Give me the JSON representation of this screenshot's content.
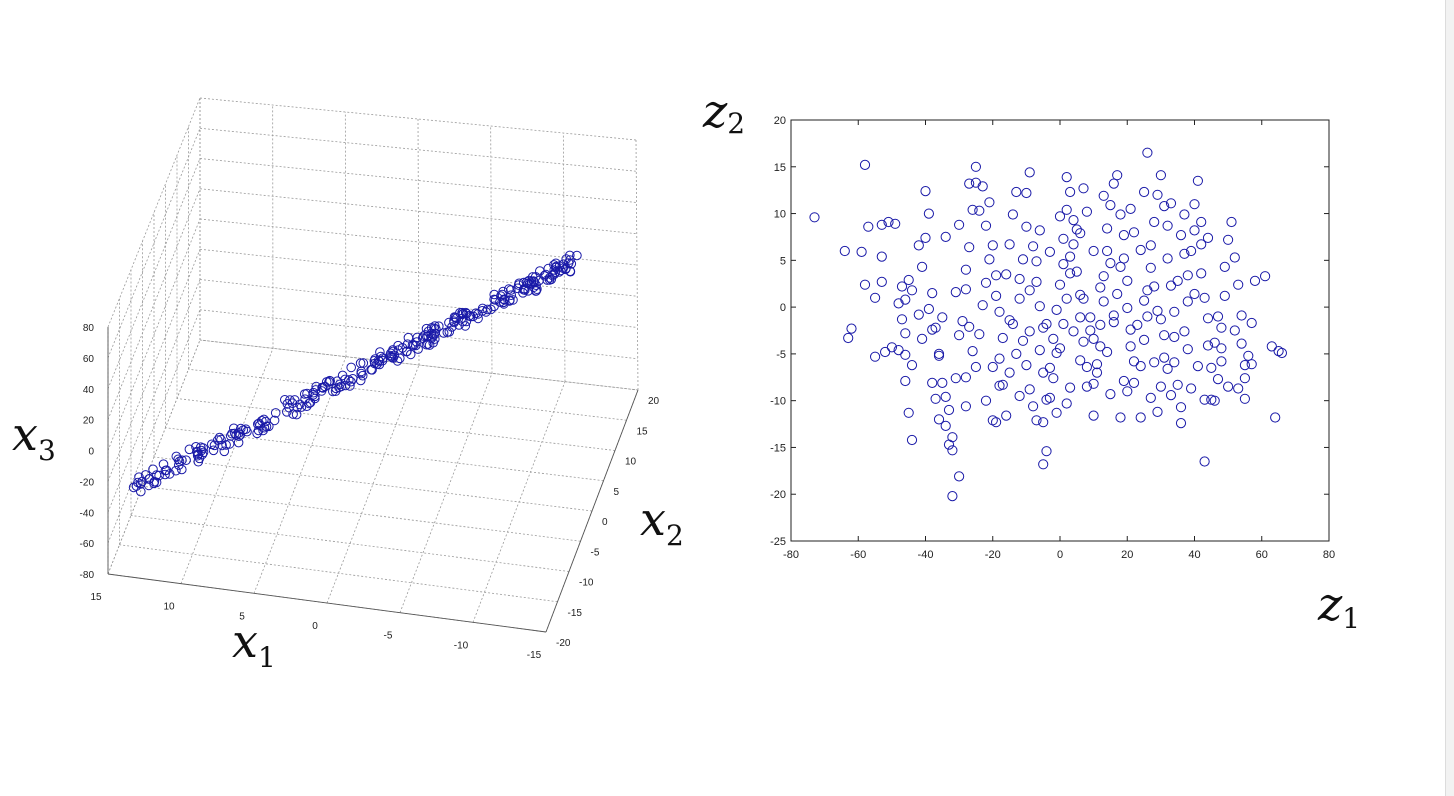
{
  "chart_data": [
    {
      "type": "scatter",
      "subtype": "3d",
      "axis_labels": {
        "x1": {
          "var": "x",
          "sub": "1"
        },
        "x2": {
          "var": "x",
          "sub": "2"
        },
        "x3": {
          "var": "x",
          "sub": "3"
        }
      },
      "x1_ticks": [
        "15",
        "10",
        "5",
        "0",
        "-5",
        "-10",
        "-15"
      ],
      "x2_ticks": [
        "20",
        "15",
        "10",
        "5",
        "0",
        "-5",
        "-10",
        "-15",
        "-20"
      ],
      "x3_ticks": [
        "80",
        "60",
        "40",
        "20",
        "0",
        "-20",
        "-40",
        "-60",
        "-80"
      ],
      "x1_range": [
        -15,
        15
      ],
      "x2_range": [
        -20,
        20
      ],
      "x3_range": [
        -80,
        80
      ],
      "grid": true,
      "marker": "circle-open",
      "color": "#1a1aa8",
      "point_count": 300,
      "trend": "points lie tightly along a line rising from the front-left (x3 about -70) to the back-right (x3 about 80)"
    },
    {
      "type": "scatter",
      "axis_labels": {
        "x": {
          "var": "z",
          "sub": "1"
        },
        "y": {
          "var": "z",
          "sub": "2"
        }
      },
      "xlim": [
        -80,
        80
      ],
      "ylim": [
        -25,
        20
      ],
      "x_ticks": [
        "-80",
        "-60",
        "-40",
        "-20",
        "0",
        "20",
        "40",
        "60",
        "80"
      ],
      "y_ticks": [
        "20",
        "15",
        "10",
        "5",
        "0",
        "-5",
        "-10",
        "-15",
        "-20",
        "-25"
      ],
      "grid": false,
      "marker": "circle-open",
      "color": "#1a1aa8",
      "points": [
        [
          -73,
          9.6
        ],
        [
          -64,
          6
        ],
        [
          -58,
          15.2
        ],
        [
          -59,
          5.9
        ],
        [
          -58,
          2.4
        ],
        [
          -55,
          1
        ],
        [
          -53,
          5.4
        ],
        [
          -53,
          8.8
        ],
        [
          -51,
          9.1
        ],
        [
          -49,
          8.9
        ],
        [
          -47,
          2.2
        ],
        [
          -46,
          0.8
        ],
        [
          -47,
          -1.3
        ],
        [
          -48,
          -4.6
        ],
        [
          -46,
          -5.1
        ],
        [
          -46,
          -7.9
        ],
        [
          -45,
          -11.3
        ],
        [
          -44,
          -14.2
        ],
        [
          -44,
          -6.2
        ],
        [
          -45,
          2.9
        ],
        [
          -42,
          6.6
        ],
        [
          -40,
          7.4
        ],
        [
          -39,
          10
        ],
        [
          -40,
          12.4
        ],
        [
          -38,
          1.5
        ],
        [
          -39,
          -0.2
        ],
        [
          -37,
          -2.2
        ],
        [
          -36,
          -5.2
        ],
        [
          -35,
          -8.1
        ],
        [
          -34,
          -9.6
        ],
        [
          -36,
          -12
        ],
        [
          -33,
          -14.7
        ],
        [
          -32,
          -13.9
        ],
        [
          -32,
          -15.3
        ],
        [
          -32,
          -20.2
        ],
        [
          -33,
          -11
        ],
        [
          -31,
          -7.6
        ],
        [
          -30,
          -3
        ],
        [
          -29,
          -1.5
        ],
        [
          -28,
          1.9
        ],
        [
          -28,
          4
        ],
        [
          -27,
          6.4
        ],
        [
          -26,
          10.4
        ],
        [
          -27,
          13.2
        ],
        [
          -25,
          13.3
        ],
        [
          -25,
          15
        ],
        [
          -23,
          12.9
        ],
        [
          -21,
          11.2
        ],
        [
          -22,
          8.7
        ],
        [
          -20,
          6.6
        ],
        [
          -19,
          3.4
        ],
        [
          -19,
          1.2
        ],
        [
          -18,
          -0.5
        ],
        [
          -17,
          -3.3
        ],
        [
          -18,
          -5.5
        ],
        [
          -18,
          -8.4
        ],
        [
          -20,
          -12.1
        ],
        [
          -16,
          -11.6
        ],
        [
          -15,
          -7
        ],
        [
          -13,
          -5
        ],
        [
          -14,
          -1.8
        ],
        [
          -12,
          0.9
        ],
        [
          -12,
          3
        ],
        [
          -11,
          5.1
        ],
        [
          -10,
          8.6
        ],
        [
          -10,
          12.2
        ],
        [
          -9,
          14.4
        ],
        [
          -8,
          6.5
        ],
        [
          -7,
          4.9
        ],
        [
          -7,
          2.7
        ],
        [
          -6,
          0.1
        ],
        [
          -5,
          -2.2
        ],
        [
          -6,
          -4.6
        ],
        [
          -5,
          -7
        ],
        [
          -4,
          -9.9
        ],
        [
          -5,
          -12.3
        ],
        [
          -4,
          -15.4
        ],
        [
          -5,
          -16.8
        ],
        [
          -3,
          -6.5
        ],
        [
          -2,
          -3.4
        ],
        [
          -1,
          -0.3
        ],
        [
          0,
          2.4
        ],
        [
          1,
          4.6
        ],
        [
          1,
          7.3
        ],
        [
          2,
          10.4
        ],
        [
          2,
          13.9
        ],
        [
          3,
          12.3
        ],
        [
          4,
          9.3
        ],
        [
          4,
          6.7
        ],
        [
          5,
          3.8
        ],
        [
          6,
          1.3
        ],
        [
          6,
          -1.1
        ],
        [
          7,
          -3.7
        ],
        [
          8,
          -6.4
        ],
        [
          8,
          -8.5
        ],
        [
          10,
          -11.6
        ],
        [
          11,
          -7
        ],
        [
          12,
          -4.2
        ],
        [
          12,
          -1.9
        ],
        [
          13,
          0.6
        ],
        [
          13,
          3.3
        ],
        [
          14,
          6
        ],
        [
          14,
          8.4
        ],
        [
          15,
          10.9
        ],
        [
          16,
          13.2
        ],
        [
          17,
          14.1
        ],
        [
          18,
          9.9
        ],
        [
          19,
          7.7
        ],
        [
          19,
          5.2
        ],
        [
          20,
          2.8
        ],
        [
          20,
          -0.1
        ],
        [
          21,
          -2.4
        ],
        [
          22,
          -5.8
        ],
        [
          22,
          -8.1
        ],
        [
          24,
          -11.8
        ],
        [
          24,
          -6.3
        ],
        [
          25,
          -3.5
        ],
        [
          26,
          -1
        ],
        [
          26,
          1.8
        ],
        [
          27,
          4.2
        ],
        [
          27,
          6.6
        ],
        [
          28,
          9.1
        ],
        [
          29,
          12
        ],
        [
          26,
          16.5
        ],
        [
          30,
          14.1
        ],
        [
          31,
          10.8
        ],
        [
          32,
          8.7
        ],
        [
          32,
          5.2
        ],
        [
          33,
          2.3
        ],
        [
          34,
          -0.5
        ],
        [
          34,
          -3.2
        ],
        [
          34,
          -5.9
        ],
        [
          35,
          -8.3
        ],
        [
          36,
          -10.7
        ],
        [
          36,
          -12.4
        ],
        [
          29,
          -11.2
        ],
        [
          30,
          -8.5
        ],
        [
          31,
          -5.4
        ],
        [
          37,
          -2.6
        ],
        [
          38,
          0.6
        ],
        [
          38,
          3.4
        ],
        [
          39,
          6
        ],
        [
          40,
          8.2
        ],
        [
          40,
          11
        ],
        [
          41,
          13.5
        ],
        [
          42,
          9.1
        ],
        [
          42,
          6.7
        ],
        [
          42,
          3.6
        ],
        [
          43,
          1
        ],
        [
          44,
          -1.2
        ],
        [
          44,
          -4.1
        ],
        [
          45,
          -6.5
        ],
        [
          45,
          -9.9
        ],
        [
          43,
          -16.5
        ],
        [
          46,
          -10
        ],
        [
          47,
          -7.7
        ],
        [
          48,
          -4.4
        ],
        [
          48,
          -2.2
        ],
        [
          49,
          1.2
        ],
        [
          49,
          4.3
        ],
        [
          50,
          7.2
        ],
        [
          51,
          9.1
        ],
        [
          52,
          5.3
        ],
        [
          53,
          2.4
        ],
        [
          54,
          -0.9
        ],
        [
          54,
          -3.9
        ],
        [
          55,
          -7.6
        ],
        [
          55,
          -9.8
        ],
        [
          56,
          -5.2
        ],
        [
          57,
          -1.7
        ],
        [
          58,
          2.8
        ],
        [
          61,
          3.3
        ],
        [
          63,
          -4.2
        ],
        [
          64,
          -11.8
        ],
        [
          65,
          -4.7
        ],
        [
          -63,
          -3.3
        ],
        [
          -62,
          -2.3
        ],
        [
          -55,
          -5.3
        ],
        [
          -52,
          -4.8
        ],
        [
          -50,
          -4.3
        ],
        [
          -53,
          2.7
        ],
        [
          -48,
          0.4
        ],
        [
          -44,
          1.8
        ],
        [
          -42,
          -0.8
        ],
        [
          -41,
          -3.4
        ],
        [
          -38,
          -2.4
        ],
        [
          -38,
          -8.1
        ],
        [
          -37,
          -9.8
        ],
        [
          -34,
          -12.7
        ],
        [
          -30,
          -18.1
        ],
        [
          -28,
          -7.5
        ],
        [
          -26,
          -4.7
        ],
        [
          -24,
          -2.9
        ],
        [
          -23,
          0.2
        ],
        [
          -22,
          2.6
        ],
        [
          -21,
          5.1
        ],
        [
          -16,
          3.5
        ],
        [
          -15,
          6.7
        ],
        [
          -14,
          9.9
        ],
        [
          -13,
          12.3
        ],
        [
          -11,
          -3.6
        ],
        [
          -10,
          -6.2
        ],
        [
          -9,
          -8.8
        ],
        [
          -8,
          -10.6
        ],
        [
          -3,
          -9.7
        ],
        [
          -2,
          -7.6
        ],
        [
          0,
          -4.4
        ],
        [
          1,
          -1.8
        ],
        [
          2,
          0.9
        ],
        [
          3,
          3.6
        ],
        [
          5,
          8.3
        ],
        [
          7,
          12.7
        ],
        [
          8,
          10.2
        ],
        [
          9,
          -1.1
        ],
        [
          10,
          -3.4
        ],
        [
          11,
          -6.1
        ],
        [
          15,
          -9.3
        ],
        [
          16,
          -1.6
        ],
        [
          17,
          1.4
        ],
        [
          18,
          4.3
        ],
        [
          21,
          -4.2
        ],
        [
          23,
          -1.9
        ],
        [
          25,
          0.7
        ],
        [
          28,
          -5.9
        ],
        [
          31,
          -3
        ],
        [
          35,
          2.8
        ],
        [
          37,
          5.7
        ],
        [
          39,
          -8.7
        ],
        [
          41,
          -6.3
        ],
        [
          46,
          -3.8
        ],
        [
          47,
          -1
        ],
        [
          50,
          -8.5
        ],
        [
          52,
          -2.5
        ],
        [
          -35,
          -1.1
        ],
        [
          -31,
          1.6
        ],
        [
          -27,
          -2.1
        ],
        [
          -25,
          -6.4
        ],
        [
          -22,
          -10
        ],
        [
          -19,
          -12.3
        ],
        [
          -17,
          -8.3
        ],
        [
          -12,
          -9.5
        ],
        [
          -7,
          -12.1
        ],
        [
          -1,
          -11.3
        ],
        [
          3,
          -8.6
        ],
        [
          6,
          -5.7
        ],
        [
          9,
          -2.5
        ],
        [
          12,
          2.1
        ],
        [
          15,
          4.7
        ],
        [
          19,
          -7.9
        ],
        [
          22,
          8
        ],
        [
          27,
          -9.7
        ],
        [
          30,
          -1.3
        ],
        [
          33,
          -9.4
        ],
        [
          36,
          7.7
        ],
        [
          44,
          7.4
        ],
        [
          -57,
          8.6
        ],
        [
          -41,
          4.3
        ],
        [
          -34,
          7.5
        ],
        [
          -30,
          8.8
        ],
        [
          -24,
          10.3
        ],
        [
          -20,
          -6.4
        ],
        [
          -15,
          -1.4
        ],
        [
          -9,
          1.8
        ],
        [
          -4,
          -1.8
        ],
        [
          -1,
          -4.9
        ],
        [
          4,
          -2.6
        ],
        [
          7,
          0.9
        ],
        [
          10,
          6
        ],
        [
          13,
          11.9
        ],
        [
          16,
          -0.9
        ],
        [
          20,
          -9
        ],
        [
          24,
          6.1
        ],
        [
          28,
          2.2
        ],
        [
          32,
          -6.6
        ],
        [
          38,
          -4.5
        ],
        [
          40,
          1.4
        ],
        [
          53,
          -8.7
        ],
        [
          57,
          -6.1
        ],
        [
          66,
          -4.9
        ],
        [
          -6,
          8.2
        ],
        [
          -3,
          5.9
        ],
        [
          0,
          9.7
        ],
        [
          3,
          5.4
        ],
        [
          6,
          7.9
        ],
        [
          10,
          -8.2
        ],
        [
          14,
          -4.8
        ],
        [
          18,
          -11.8
        ],
        [
          21,
          10.5
        ],
        [
          25,
          12.3
        ],
        [
          29,
          -0.4
        ],
        [
          33,
          11.1
        ],
        [
          37,
          9.9
        ],
        [
          43,
          -9.9
        ],
        [
          48,
          -5.8
        ],
        [
          55,
          -6.2
        ],
        [
          -46,
          -2.8
        ],
        [
          -36,
          -5
        ],
        [
          -28,
          -10.6
        ],
        [
          -9,
          -2.6
        ],
        [
          2,
          -10.3
        ]
      ]
    }
  ]
}
